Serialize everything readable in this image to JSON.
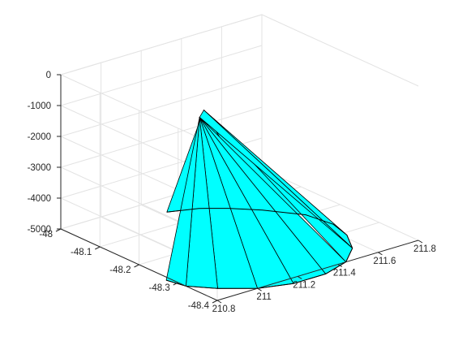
{
  "chart_data": {
    "type": "surface3d",
    "title": "",
    "xlabel": "",
    "ylabel": "",
    "zlabel": "",
    "xlim": [
      210.8,
      211.8
    ],
    "ylim": [
      -48.4,
      -48.0
    ],
    "zlim": [
      -5000,
      0
    ],
    "x_ticks": [
      210.8,
      211,
      211.2,
      211.4,
      211.6,
      211.8
    ],
    "x_tick_labels": [
      "210.8",
      "211",
      "211.2",
      "211.4",
      "211.6",
      "211.8"
    ],
    "y_ticks": [
      -48,
      -48.1,
      -48.2,
      -48.3,
      -48.4
    ],
    "y_tick_labels": [
      "-48",
      "-48.1",
      "-48.2",
      "-48.3",
      "-48.4"
    ],
    "z_ticks": [
      0,
      -1000,
      -2000,
      -3000,
      -4000,
      -5000
    ],
    "z_tick_labels": [
      "0",
      "-1000",
      "-2000",
      "-3000",
      "-4000",
      "-5000"
    ],
    "grid": true,
    "face_color": "#00ffff",
    "edge_color": "#000000",
    "apex": [
      [
        211.14,
        -48.18,
        -1000
      ],
      [
        211.2,
        -48.16,
        -1000
      ]
    ],
    "base": [
      [
        211.23,
        -48.05,
        -5000
      ],
      [
        211.35,
        -48.07,
        -5000
      ],
      [
        211.44,
        -48.1,
        -5000
      ],
      [
        211.53,
        -48.14,
        -5000
      ],
      [
        211.63,
        -48.2,
        -5000
      ],
      [
        211.65,
        -48.26,
        -5000
      ],
      [
        211.62,
        -48.31,
        -5000
      ],
      [
        211.55,
        -48.36,
        -5000
      ],
      [
        211.44,
        -48.4,
        -5000
      ],
      [
        211.3,
        -48.42,
        -5000
      ],
      [
        211.14,
        -48.42,
        -5000
      ],
      [
        211.0,
        -48.4,
        -5000
      ],
      [
        210.88,
        -48.36,
        -5000
      ],
      [
        210.8,
        -48.32,
        -5000
      ],
      [
        210.78,
        -48.28,
        -5000
      ]
    ]
  }
}
